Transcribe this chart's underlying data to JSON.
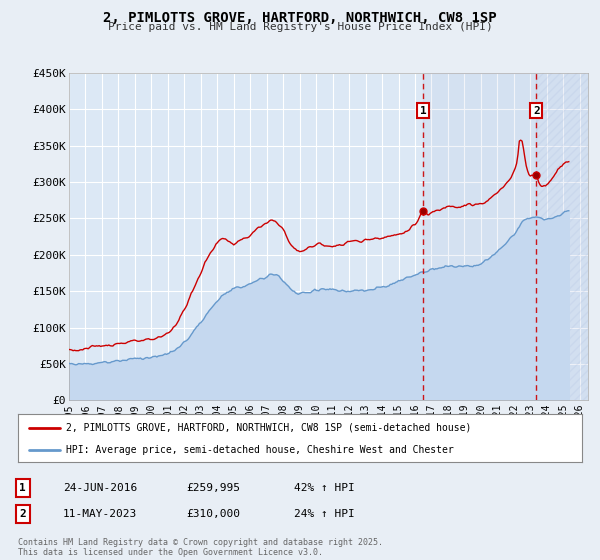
{
  "title": "2, PIMLOTTS GROVE, HARTFORD, NORTHWICH, CW8 1SP",
  "subtitle": "Price paid vs. HM Land Registry's House Price Index (HPI)",
  "background_color": "#e8eef5",
  "plot_bg_color": "#dce8f5",
  "grid_color": "#ffffff",
  "red_line_color": "#cc0000",
  "blue_line_color": "#6699cc",
  "blue_fill_color": "#c5d8ef",
  "hatch_color": "#b8ccde",
  "marker1_x": 2016.49,
  "marker2_x": 2023.36,
  "marker1_val": 259995,
  "marker2_val": 310000,
  "legend_label_red": "2, PIMLOTTS GROVE, HARTFORD, NORTHWICH, CW8 1SP (semi-detached house)",
  "legend_label_blue": "HPI: Average price, semi-detached house, Cheshire West and Chester",
  "table_row1": [
    "1",
    "24-JUN-2016",
    "£259,995",
    "42% ↑ HPI"
  ],
  "table_row2": [
    "2",
    "11-MAY-2023",
    "£310,000",
    "24% ↑ HPI"
  ],
  "footer": "Contains HM Land Registry data © Crown copyright and database right 2025.\nThis data is licensed under the Open Government Licence v3.0.",
  "ylim": [
    0,
    450000
  ],
  "yticks": [
    0,
    50000,
    100000,
    150000,
    200000,
    250000,
    300000,
    350000,
    400000,
    450000
  ],
  "ytick_labels": [
    "£0",
    "£50K",
    "£100K",
    "£150K",
    "£200K",
    "£250K",
    "£300K",
    "£350K",
    "£400K",
    "£450K"
  ],
  "xlim_start": 1995.0,
  "xlim_end": 2026.5,
  "xtick_years": [
    1995,
    1996,
    1997,
    1998,
    1999,
    2000,
    2001,
    2002,
    2003,
    2004,
    2005,
    2006,
    2007,
    2008,
    2009,
    2010,
    2011,
    2012,
    2013,
    2014,
    2015,
    2016,
    2017,
    2018,
    2019,
    2020,
    2021,
    2022,
    2023,
    2024,
    2025,
    2026
  ]
}
